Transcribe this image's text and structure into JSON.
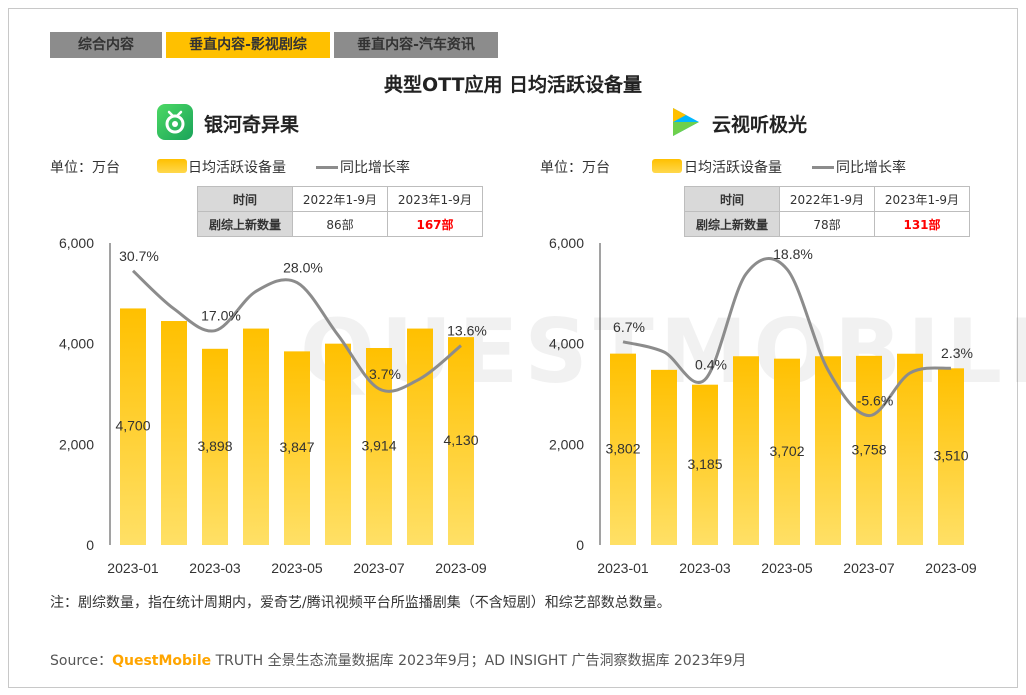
{
  "tabs": [
    {
      "label": "综合内容",
      "active": false
    },
    {
      "label": "垂直内容-影视剧综",
      "active": true
    },
    {
      "label": "垂直内容-汽车资讯",
      "active": false
    }
  ],
  "title": "典型OTT应用 日均活跃设备量",
  "colors": {
    "bar": "#ffc000",
    "bar_light": "#ffe066",
    "line": "#8c8c8c",
    "highlight": "#ff0000",
    "brand": "#ffa500"
  },
  "watermark": "QUESTMOBILE",
  "panels": [
    {
      "app_name": "银河奇异果",
      "app_icon": "tv-icon",
      "unit": "单位：万台",
      "legend": {
        "bar": "日均活跃设备量",
        "line": "同比增长率"
      },
      "table": {
        "header": [
          "时间",
          "2022年1-9月",
          "2023年1-9月"
        ],
        "row": [
          "剧综上新数量",
          "86部",
          "167部"
        ]
      }
    },
    {
      "app_name": "云视听极光",
      "app_icon": "play-icon",
      "unit": "单位：万台",
      "legend": {
        "bar": "日均活跃设备量",
        "line": "同比增长率"
      },
      "table": {
        "header": [
          "时间",
          "2022年1-9月",
          "2023年1-9月"
        ],
        "row": [
          "剧综上新数量",
          "78部",
          "131部"
        ]
      }
    }
  ],
  "chart_data": [
    {
      "type": "bar",
      "title": "银河奇异果",
      "ylabel": "单位：万台",
      "ylim": [
        0,
        6000
      ],
      "yticks": [
        "0",
        "2,000",
        "4,000",
        "6,000"
      ],
      "categories": [
        "2023-01",
        "2023-02",
        "2023-03",
        "2023-04",
        "2023-05",
        "2023-06",
        "2023-07",
        "2023-08",
        "2023-09"
      ],
      "xtick_labels": [
        "2023-01",
        "2023-03",
        "2023-05",
        "2023-07",
        "2023-09"
      ],
      "series": [
        {
          "name": "日均活跃设备量",
          "kind": "bar",
          "values": [
            4700,
            4450,
            3898,
            4300,
            3847,
            4000,
            3914,
            4300,
            4130
          ]
        },
        {
          "name": "同比增长率",
          "kind": "line",
          "values": [
            30.7,
            22,
            17.0,
            26,
            28.0,
            16,
            3.7,
            6,
            13.6
          ]
        }
      ],
      "bar_labels": [
        {
          "i": 0,
          "text": "4,700"
        },
        {
          "i": 2,
          "text": "3,898"
        },
        {
          "i": 4,
          "text": "3,847"
        },
        {
          "i": 6,
          "text": "3,914"
        },
        {
          "i": 8,
          "text": "4,130"
        }
      ],
      "line_labels": [
        {
          "i": 0,
          "text": "30.7%"
        },
        {
          "i": 2,
          "text": "17.0%"
        },
        {
          "i": 4,
          "text": "28.0%"
        },
        {
          "i": 6,
          "text": "3.7%"
        },
        {
          "i": 8,
          "text": "13.6%"
        }
      ]
    },
    {
      "type": "bar",
      "title": "云视听极光",
      "ylabel": "单位：万台",
      "ylim": [
        0,
        6000
      ],
      "yticks": [
        "0",
        "2,000",
        "4,000",
        "6,000"
      ],
      "categories": [
        "2023-01",
        "2023-02",
        "2023-03",
        "2023-04",
        "2023-05",
        "2023-06",
        "2023-07",
        "2023-08",
        "2023-09"
      ],
      "xtick_labels": [
        "2023-01",
        "2023-03",
        "2023-05",
        "2023-07",
        "2023-09"
      ],
      "series": [
        {
          "name": "日均活跃设备量",
          "kind": "bar",
          "values": [
            3802,
            3480,
            3185,
            3750,
            3702,
            3750,
            3758,
            3800,
            3510
          ]
        },
        {
          "name": "同比增长率",
          "kind": "line",
          "values": [
            6.7,
            5,
            0.4,
            18,
            18.8,
            2,
            -5.6,
            1.5,
            2.3
          ]
        }
      ],
      "bar_labels": [
        {
          "i": 0,
          "text": "3,802"
        },
        {
          "i": 2,
          "text": "3,185"
        },
        {
          "i": 4,
          "text": "3,702"
        },
        {
          "i": 6,
          "text": "3,758"
        },
        {
          "i": 8,
          "text": "3,510"
        }
      ],
      "line_labels": [
        {
          "i": 0,
          "text": "6.7%"
        },
        {
          "i": 2,
          "text": "0.4%"
        },
        {
          "i": 4,
          "text": "18.8%"
        },
        {
          "i": 6,
          "text": "-5.6%"
        },
        {
          "i": 8,
          "text": "2.3%"
        }
      ]
    }
  ],
  "note": "注：剧综数量，指在统计周期内，爱奇艺/腾讯视频平台所监播剧集（不含短剧）和综艺部数总数量。",
  "source": {
    "prefix": "Source：",
    "brand": "QuestMobile",
    "text": " TRUTH 全景生态流量数据库 2023年9月；AD INSIGHT 广告洞察数据库 2023年9月"
  }
}
